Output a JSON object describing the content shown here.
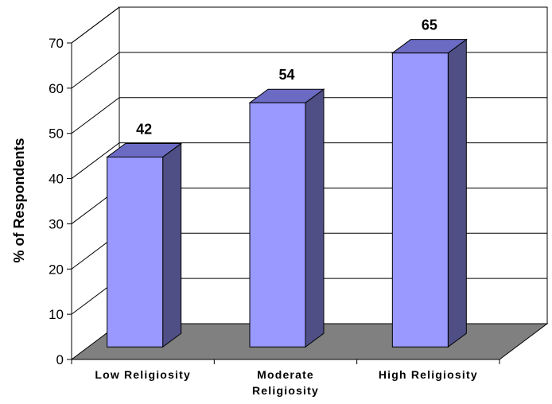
{
  "chart_data": {
    "type": "bar",
    "title": "",
    "xlabel": "",
    "ylabel": "% of Respondents",
    "ylim": [
      0,
      70
    ],
    "yticks": [
      0,
      10,
      20,
      30,
      40,
      50,
      60,
      70
    ],
    "grid": true,
    "style": "3d",
    "categories": [
      [
        "Low Religiosity"
      ],
      [
        "Moderate",
        "Religiosity"
      ],
      [
        "High Religiosity"
      ]
    ],
    "values": [
      42,
      54,
      65
    ],
    "colors": {
      "bar_front": "#9999FF",
      "bar_top": "#6B6BC4",
      "bar_side": "#4F4F86",
      "floor": "#808080"
    }
  }
}
